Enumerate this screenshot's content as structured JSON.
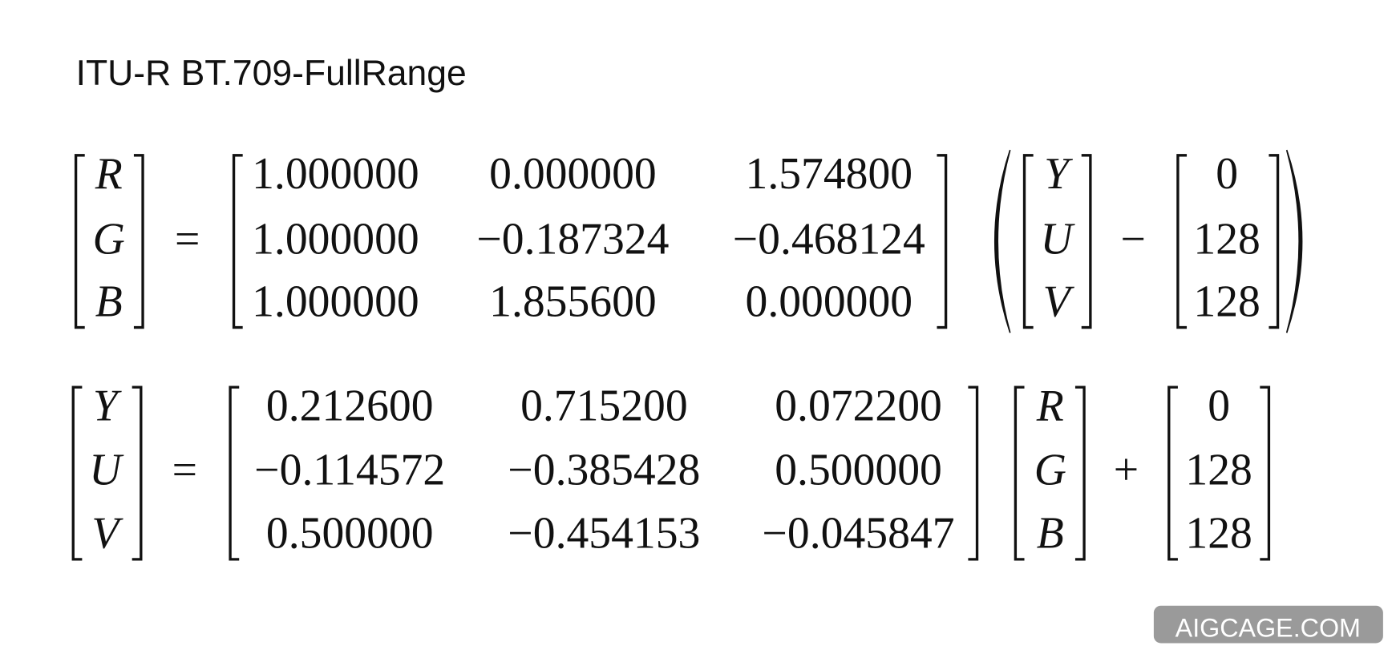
{
  "title": "ITU-R BT.709-FullRange",
  "equations": [
    {
      "lhs": [
        "R",
        "G",
        "B"
      ],
      "relation": "=",
      "matrix": [
        [
          "1.000000",
          "0.000000",
          "1.574800"
        ],
        [
          "1.000000",
          "−0.187324",
          "−0.468124"
        ],
        [
          "1.000000",
          "1.855600",
          "0.000000"
        ]
      ],
      "vector": [
        "Y",
        "U",
        "V"
      ],
      "operator": "−",
      "offset": [
        "0",
        "128",
        "128"
      ]
    },
    {
      "lhs": [
        "Y",
        "U",
        "V"
      ],
      "relation": "=",
      "matrix": [
        [
          "0.212600",
          "0.715200",
          "0.072200"
        ],
        [
          "−0.114572",
          "−0.385428",
          "0.500000"
        ],
        [
          "0.500000",
          "−0.454153",
          "−0.045847"
        ]
      ],
      "vector": [
        "R",
        "G",
        "B"
      ],
      "operator": "+",
      "offset": [
        "0",
        "128",
        "128"
      ]
    }
  ],
  "watermark": "AIGCAGE.COM"
}
